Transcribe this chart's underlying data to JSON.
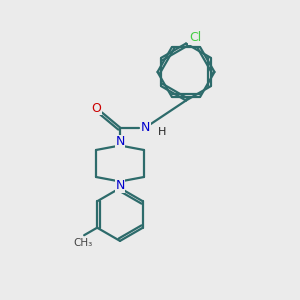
{
  "background_color": "#ebebeb",
  "bond_color": "#2d6b6b",
  "bond_width": 1.6,
  "atom_colors": {
    "N": "#0000cc",
    "O": "#cc0000",
    "Cl": "#44cc44",
    "C": "#2d6b6b",
    "H": "#000000"
  },
  "fig_size": [
    3.0,
    3.0
  ],
  "dpi": 100,
  "xlim": [
    0,
    10
  ],
  "ylim": [
    0,
    10
  ]
}
